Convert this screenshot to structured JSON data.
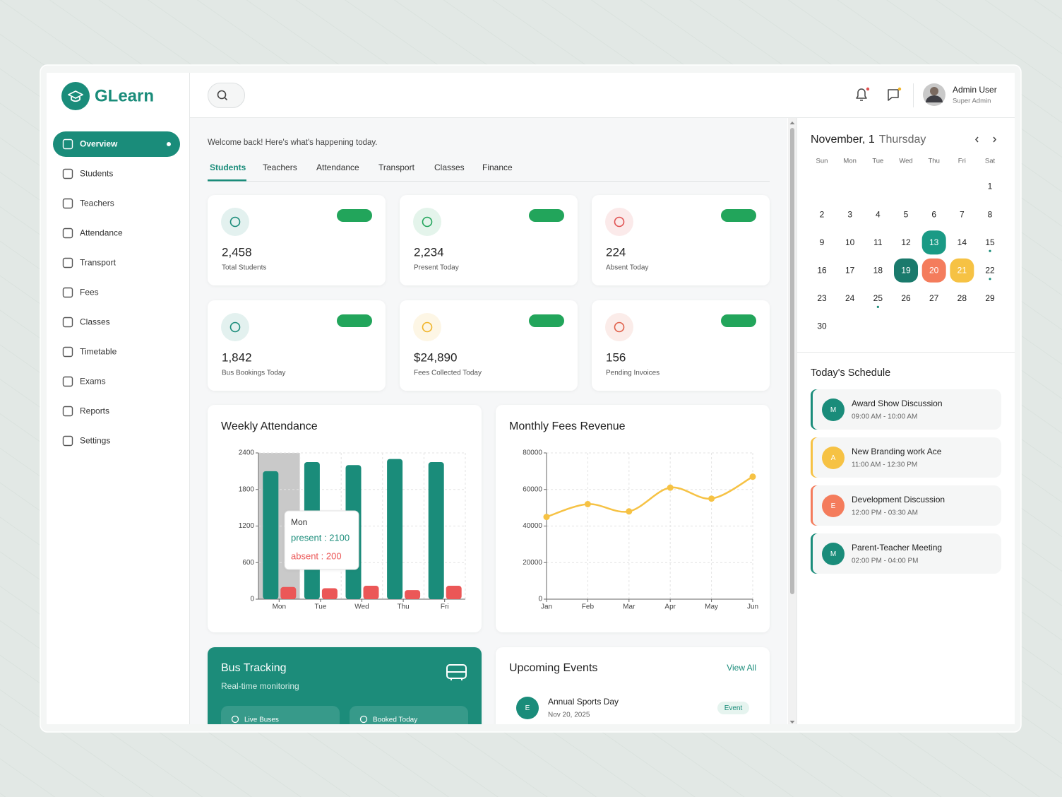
{
  "brand": "GLearn",
  "nav": {
    "items": [
      "Overview",
      "Students",
      "Teachers",
      "Attendance",
      "Transport",
      "Fees",
      "Classes",
      "Timetable",
      "Exams",
      "Reports",
      "Settings"
    ],
    "active": 0
  },
  "header": {
    "user": {
      "name": "Admin User",
      "role": "Super Admin"
    }
  },
  "welcome": "Welcome back! Here's what's happening today.",
  "tabs": {
    "items": [
      "Students",
      "Teachers",
      "Attendance",
      "Transport",
      "Classes",
      "Finance"
    ],
    "active": 0
  },
  "stats": [
    {
      "value": "2,458",
      "label": "Total Students",
      "color": "#1a8c7a"
    },
    {
      "value": "2,234",
      "label": "Present Today",
      "color": "#22a55b"
    },
    {
      "value": "224",
      "label": "Absent Today",
      "color": "#e05252"
    },
    {
      "value": "1,842",
      "label": "Bus Bookings Today",
      "color": "#1a8c7a"
    },
    {
      "value": "$24,890",
      "label": "Fees Collected Today",
      "color": "#f0b429"
    },
    {
      "value": "156",
      "label": "Pending Invoices",
      "color": "#e0604a"
    }
  ],
  "weekly_attendance": {
    "type": "bar",
    "title": "Weekly Attendance",
    "categories": [
      "Mon",
      "Tue",
      "Wed",
      "Thu",
      "Fri"
    ],
    "series": [
      {
        "name": "present",
        "color": "#1a8c7a",
        "values": [
          2100,
          2250,
          2200,
          2300,
          2250
        ]
      },
      {
        "name": "absent",
        "color": "#eb5757",
        "values": [
          200,
          180,
          220,
          150,
          220
        ]
      }
    ],
    "ylim": [
      0,
      2400
    ],
    "yticks": [
      0,
      600,
      1200,
      1800,
      2400
    ],
    "grid": true,
    "tooltip": {
      "title": "Mon",
      "lines": [
        "present : 2100",
        "absent : 200"
      ]
    }
  },
  "monthly_fees": {
    "type": "line",
    "title": "Monthly Fees Revenue",
    "categories": [
      "Jan",
      "Feb",
      "Mar",
      "Apr",
      "May",
      "Jun"
    ],
    "series": [
      {
        "color": "#f6c244",
        "values": [
          45000,
          52000,
          48000,
          61000,
          55000,
          67000
        ]
      }
    ],
    "ylim": [
      0,
      80000
    ],
    "yticks": [
      0,
      20000,
      40000,
      60000,
      80000
    ],
    "grid": true
  },
  "calendar": {
    "month": "November, 1",
    "weekday": "Thursday",
    "weekdays": [
      "Sun",
      "Mon",
      "Tue",
      "Wed",
      "Thu",
      "Fri",
      "Sat"
    ],
    "days": [
      1,
      2,
      3,
      4,
      5,
      6,
      7,
      8,
      9,
      10,
      11,
      12,
      13,
      14,
      15,
      16,
      17,
      18,
      19,
      20,
      21,
      22,
      23,
      24,
      25,
      26,
      27,
      28,
      29,
      30
    ]
  },
  "schedule": {
    "title": "Today's Schedule",
    "items": [
      {
        "initial": "M",
        "title": "Award Show Discussion",
        "time": "09:00 AM - 10:00 AM",
        "color": "#1a8c7a"
      },
      {
        "initial": "A",
        "title": "New Branding work Ace",
        "time": "11:00 AM - 12:30 PM",
        "color": "#f6c244"
      },
      {
        "initial": "E",
        "title": "Development Discussion",
        "time": "12:00 PM - 03:30 AM",
        "color": "#f47c5c"
      },
      {
        "initial": "M",
        "title": "Parent-Teacher Meeting",
        "time": "02:00 PM - 04:00 PM",
        "color": "#1a8c7a"
      }
    ]
  },
  "bus": {
    "title": "Bus Tracking",
    "subtitle": "Real-time monitoring",
    "stats": [
      "Live Buses",
      "Booked Today"
    ]
  },
  "events": {
    "title": "Upcoming Events",
    "link": "View All",
    "items": [
      {
        "initial": "E",
        "title": "Annual Sports Day",
        "date": "Nov 20, 2025",
        "tag": "Event"
      }
    ]
  }
}
